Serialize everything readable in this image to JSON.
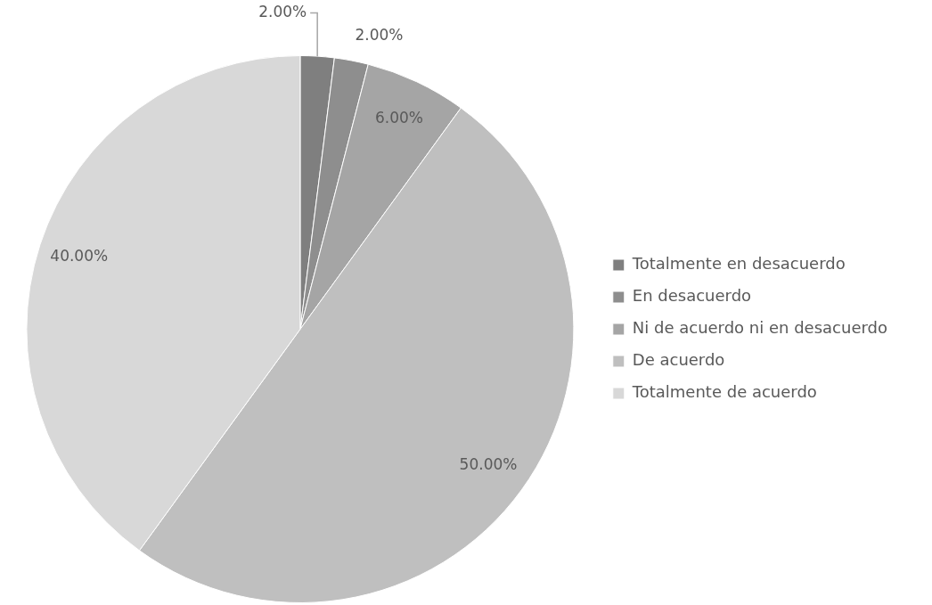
{
  "chart_data": {
    "type": "pie",
    "categories": [
      "Totalmente en desacuerdo",
      "En desacuerdo",
      "Ni de acuerdo ni en desacuerdo",
      "De acuerdo",
      "Totalmente de acuerdo"
    ],
    "values": [
      2,
      2,
      6,
      50,
      40
    ],
    "value_labels": [
      "2.00%",
      "2.00%",
      "6.00%",
      "50.00%",
      "40.00%"
    ],
    "colors": [
      "#7f7f7f",
      "#8e8e8e",
      "#a5a5a5",
      "#bfbfbf",
      "#d8d8d8"
    ],
    "legend": "right"
  }
}
